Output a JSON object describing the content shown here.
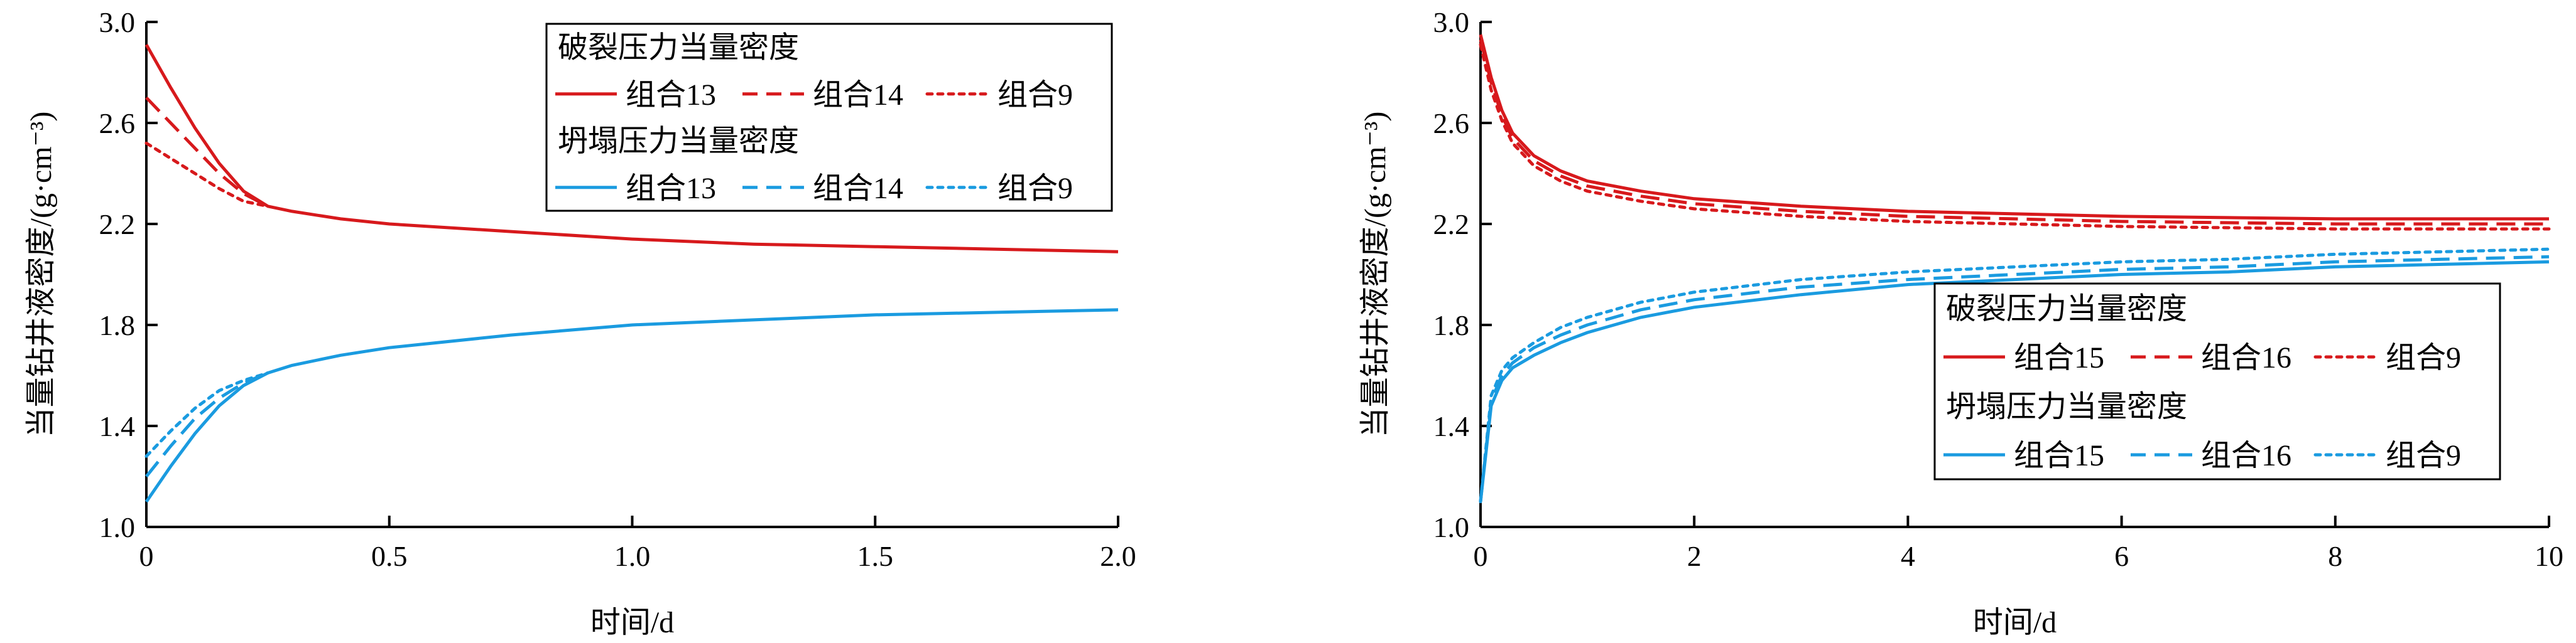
{
  "chart_data": [
    {
      "type": "line",
      "xlabel": "时间/d",
      "ylabel": "当量钻井液密度/(g·cm⁻³)",
      "xlim": [
        0,
        2.0
      ],
      "ylim": [
        1.0,
        3.0
      ],
      "xticks": [
        0,
        0.5,
        1.0,
        1.5,
        2.0
      ],
      "xtick_labels": [
        "0",
        "0.5",
        "1.0",
        "1.5",
        "2.0"
      ],
      "yticks": [
        1.0,
        1.4,
        1.8,
        2.2,
        2.6,
        3.0
      ],
      "ytick_labels": [
        "1.0",
        "1.4",
        "1.8",
        "2.2",
        "2.6",
        "3.0"
      ],
      "grid": false,
      "legend": {
        "placement": "top-right",
        "groups": [
          {
            "title": "破裂压力当量密度",
            "entries": [
              "组合13",
              "组合14",
              "组合9"
            ]
          },
          {
            "title": "坍塌压力当量密度",
            "entries": [
              "组合13",
              "组合14",
              "组合9"
            ]
          }
        ]
      },
      "colors": {
        "fracture": "#d7191c",
        "collapse": "#1a9be0"
      },
      "series": [
        {
          "group": "破裂压力当量密度",
          "name": "组合13",
          "dash": "solid",
          "x": [
            0,
            0.05,
            0.1,
            0.15,
            0.2,
            0.25,
            0.3,
            0.4,
            0.5,
            0.75,
            1.0,
            1.25,
            1.5,
            1.75,
            2.0
          ],
          "y": [
            2.91,
            2.74,
            2.58,
            2.44,
            2.33,
            2.27,
            2.25,
            2.22,
            2.2,
            2.17,
            2.14,
            2.12,
            2.11,
            2.1,
            2.09
          ]
        },
        {
          "group": "破裂压力当量密度",
          "name": "组合14",
          "dash": "dashed",
          "x": [
            0,
            0.05,
            0.1,
            0.15,
            0.2,
            0.25
          ],
          "y": [
            2.7,
            2.6,
            2.5,
            2.4,
            2.32,
            2.27
          ]
        },
        {
          "group": "破裂压力当量密度",
          "name": "组合9",
          "dash": "dotted",
          "x": [
            0,
            0.05,
            0.1,
            0.15,
            0.2,
            0.25
          ],
          "y": [
            2.52,
            2.46,
            2.4,
            2.34,
            2.29,
            2.27
          ]
        },
        {
          "group": "坍塌压力当量密度",
          "name": "组合13",
          "dash": "solid",
          "x": [
            0,
            0.05,
            0.1,
            0.15,
            0.2,
            0.25,
            0.3,
            0.4,
            0.5,
            0.75,
            1.0,
            1.25,
            1.5,
            1.75,
            2.0
          ],
          "y": [
            1.1,
            1.24,
            1.37,
            1.48,
            1.56,
            1.61,
            1.64,
            1.68,
            1.71,
            1.76,
            1.8,
            1.82,
            1.84,
            1.85,
            1.86
          ]
        },
        {
          "group": "坍塌压力当量密度",
          "name": "组合14",
          "dash": "dashed",
          "x": [
            0,
            0.05,
            0.1,
            0.15,
            0.2,
            0.25
          ],
          "y": [
            1.2,
            1.32,
            1.43,
            1.51,
            1.57,
            1.61
          ]
        },
        {
          "group": "坍塌压力当量密度",
          "name": "组合9",
          "dash": "dotted",
          "x": [
            0,
            0.05,
            0.1,
            0.15,
            0.2,
            0.25
          ],
          "y": [
            1.28,
            1.38,
            1.47,
            1.54,
            1.58,
            1.61
          ]
        }
      ]
    },
    {
      "type": "line",
      "xlabel": "时间/d",
      "ylabel": "当量钻井液密度/(g·cm⁻³)",
      "xlim": [
        0,
        10
      ],
      "ylim": [
        1.0,
        3.0
      ],
      "xticks": [
        0,
        2,
        4,
        6,
        8,
        10
      ],
      "xtick_labels": [
        "0",
        "2",
        "4",
        "6",
        "8",
        "10"
      ],
      "yticks": [
        1.0,
        1.4,
        1.8,
        2.2,
        2.6,
        3.0
      ],
      "ytick_labels": [
        "1.0",
        "1.4",
        "1.8",
        "2.2",
        "2.6",
        "3.0"
      ],
      "grid": false,
      "legend": {
        "placement": "bottom-right",
        "groups": [
          {
            "title": "破裂压力当量密度",
            "entries": [
              "组合15",
              "组合16",
              "组合9"
            ]
          },
          {
            "title": "坍塌压力当量密度",
            "entries": [
              "组合15",
              "组合16",
              "组合9"
            ]
          }
        ]
      },
      "colors": {
        "fracture": "#d7191c",
        "collapse": "#1a9be0"
      },
      "series": [
        {
          "group": "破裂压力当量密度",
          "name": "组合15",
          "dash": "solid",
          "x": [
            0,
            0.1,
            0.2,
            0.3,
            0.5,
            0.75,
            1,
            1.5,
            2,
            3,
            4,
            5,
            6,
            7,
            8,
            9,
            10
          ],
          "y": [
            2.95,
            2.78,
            2.65,
            2.56,
            2.47,
            2.41,
            2.37,
            2.33,
            2.3,
            2.27,
            2.25,
            2.24,
            2.23,
            2.225,
            2.22,
            2.22,
            2.22
          ]
        },
        {
          "group": "破裂压力当量密度",
          "name": "组合16",
          "dash": "dashed",
          "x": [
            0,
            0.1,
            0.2,
            0.3,
            0.5,
            0.75,
            1,
            1.5,
            2,
            3,
            4,
            5,
            6,
            7,
            8,
            9,
            10
          ],
          "y": [
            2.93,
            2.76,
            2.63,
            2.54,
            2.45,
            2.39,
            2.35,
            2.31,
            2.28,
            2.25,
            2.23,
            2.22,
            2.21,
            2.205,
            2.2,
            2.2,
            2.2
          ]
        },
        {
          "group": "破裂压力当量密度",
          "name": "组合9",
          "dash": "dotted",
          "x": [
            0,
            0.1,
            0.2,
            0.3,
            0.5,
            0.75,
            1,
            1.5,
            2,
            3,
            4,
            5,
            6,
            7,
            8,
            9,
            10
          ],
          "y": [
            2.91,
            2.73,
            2.61,
            2.52,
            2.43,
            2.37,
            2.33,
            2.29,
            2.26,
            2.23,
            2.21,
            2.2,
            2.19,
            2.185,
            2.18,
            2.18,
            2.18
          ]
        },
        {
          "group": "坍塌压力当量密度",
          "name": "组合15",
          "dash": "solid",
          "x": [
            0,
            0.1,
            0.2,
            0.3,
            0.5,
            0.75,
            1,
            1.5,
            2,
            3,
            4,
            5,
            6,
            7,
            8,
            9,
            10
          ],
          "y": [
            1.1,
            1.48,
            1.58,
            1.63,
            1.68,
            1.73,
            1.77,
            1.83,
            1.87,
            1.92,
            1.96,
            1.98,
            2.0,
            2.01,
            2.03,
            2.04,
            2.05
          ]
        },
        {
          "group": "坍塌压力当量密度",
          "name": "组合16",
          "dash": "dashed",
          "x": [
            0,
            0.1,
            0.2,
            0.3,
            0.5,
            0.75,
            1,
            1.5,
            2,
            3,
            4,
            5,
            6,
            7,
            8,
            9,
            10
          ],
          "y": [
            1.1,
            1.5,
            1.6,
            1.65,
            1.71,
            1.76,
            1.8,
            1.86,
            1.9,
            1.95,
            1.98,
            2.0,
            2.02,
            2.03,
            2.05,
            2.06,
            2.07
          ]
        },
        {
          "group": "坍塌压力当量密度",
          "name": "组合9",
          "dash": "dotted",
          "x": [
            0,
            0.1,
            0.2,
            0.3,
            0.5,
            0.75,
            1,
            1.5,
            2,
            3,
            4,
            5,
            6,
            7,
            8,
            9,
            10
          ],
          "y": [
            1.1,
            1.52,
            1.62,
            1.67,
            1.73,
            1.79,
            1.83,
            1.89,
            1.93,
            1.98,
            2.01,
            2.03,
            2.05,
            2.06,
            2.08,
            2.09,
            2.1
          ]
        }
      ]
    }
  ]
}
